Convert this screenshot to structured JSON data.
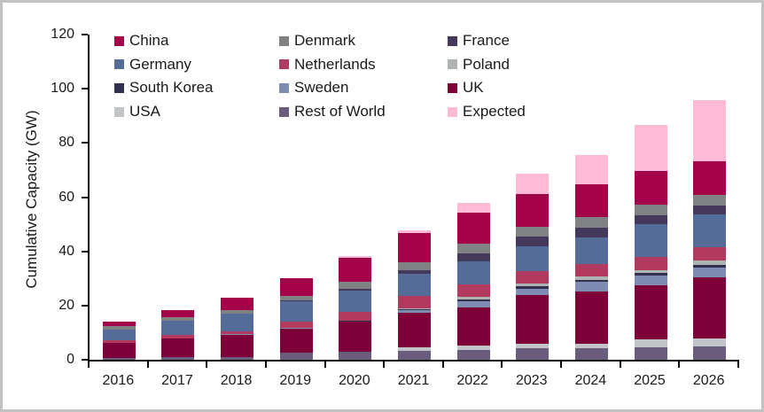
{
  "page": {
    "background": "#FFFFFF",
    "frame_border_color": "#C2C2C2",
    "axis_color": "#000000",
    "text_color": "#1A1A1A"
  },
  "chart_data": {
    "type": "bar",
    "variant": "stacked-column",
    "title": "",
    "xlabel": "",
    "ylabel": "Cumulative Capacity (GW)",
    "ylim": [
      0,
      120
    ],
    "yticks": [
      0,
      20,
      40,
      60,
      80,
      100,
      120
    ],
    "grid": "off",
    "legend_position": "top-left-inside",
    "legend_columns": 3,
    "categories": [
      "2016",
      "2017",
      "2018",
      "2019",
      "2020",
      "2021",
      "2022",
      "2023",
      "2024",
      "2025",
      "2026"
    ],
    "series": [
      {
        "name": "China",
        "color": "#A50349",
        "values": [
          1.5,
          2.6,
          4.6,
          6.6,
          8.8,
          10.5,
          11.5,
          12.0,
          12.2,
          12.4,
          12.5
        ]
      },
      {
        "name": "Denmark",
        "color": "#7F8183",
        "values": [
          1.3,
          1.3,
          1.3,
          1.8,
          2.5,
          3.0,
          3.6,
          3.8,
          4.0,
          4.0,
          4.0
        ]
      },
      {
        "name": "France",
        "color": "#45395B",
        "values": [
          0,
          0,
          0,
          0.3,
          0.8,
          1.5,
          3.0,
          3.3,
          3.4,
          3.4,
          3.4
        ]
      },
      {
        "name": "Germany",
        "color": "#546C98",
        "values": [
          4.1,
          5.4,
          6.4,
          7.4,
          7.8,
          8.2,
          8.5,
          9.3,
          9.8,
          12.0,
          12.1
        ]
      },
      {
        "name": "Netherlands",
        "color": "#B23A5E",
        "values": [
          0.8,
          1.1,
          1.1,
          2.3,
          3.3,
          4.5,
          4.6,
          4.6,
          4.8,
          4.8,
          4.9
        ]
      },
      {
        "name": "Poland",
        "color": "#AFB4B3",
        "values": [
          0,
          0,
          0,
          0,
          0.1,
          0.2,
          1.0,
          1.1,
          1.1,
          1.2,
          1.5
        ]
      },
      {
        "name": "South Korea",
        "color": "#31304E",
        "values": [
          0,
          0,
          0,
          0.1,
          0.1,
          0.3,
          0.5,
          0.8,
          0.9,
          0.9,
          0.9
        ]
      },
      {
        "name": "Sweden",
        "color": "#7E8BB2",
        "values": [
          0.2,
          0.2,
          0.2,
          0.2,
          0.3,
          1.0,
          2.5,
          2.5,
          3.3,
          3.6,
          3.6
        ]
      },
      {
        "name": "UK",
        "color": "#7D0039",
        "values": [
          5.3,
          6.8,
          8.2,
          9.0,
          11.0,
          13.0,
          14.0,
          18.0,
          19.5,
          20.0,
          22.7
        ]
      },
      {
        "name": "USA",
        "color": "#C1C5C7",
        "values": [
          0,
          0,
          0,
          0,
          0.1,
          1.0,
          1.5,
          1.5,
          1.5,
          2.8,
          3.0
        ]
      },
      {
        "name": "Rest of World",
        "color": "#6A5C7D",
        "values": [
          0.8,
          0.9,
          1.1,
          2.5,
          2.8,
          3.4,
          3.7,
          4.2,
          4.3,
          4.6,
          4.8
        ]
      },
      {
        "name": "Expected",
        "color": "#FFBBD6",
        "values": [
          0,
          0,
          0,
          0,
          0.5,
          1.3,
          3.6,
          7.6,
          10.8,
          16.9,
          22.5
        ]
      }
    ],
    "stack_order_bottom_to_top": [
      "Rest of World",
      "USA",
      "UK",
      "Sweden",
      "South Korea",
      "Poland",
      "Netherlands",
      "Germany",
      "France",
      "Denmark",
      "China",
      "Expected"
    ],
    "totals_by_year": [
      14.0,
      18.3,
      22.9,
      30.2,
      38.1,
      47.9,
      58.0,
      68.7,
      75.6,
      86.6,
      95.9
    ]
  }
}
